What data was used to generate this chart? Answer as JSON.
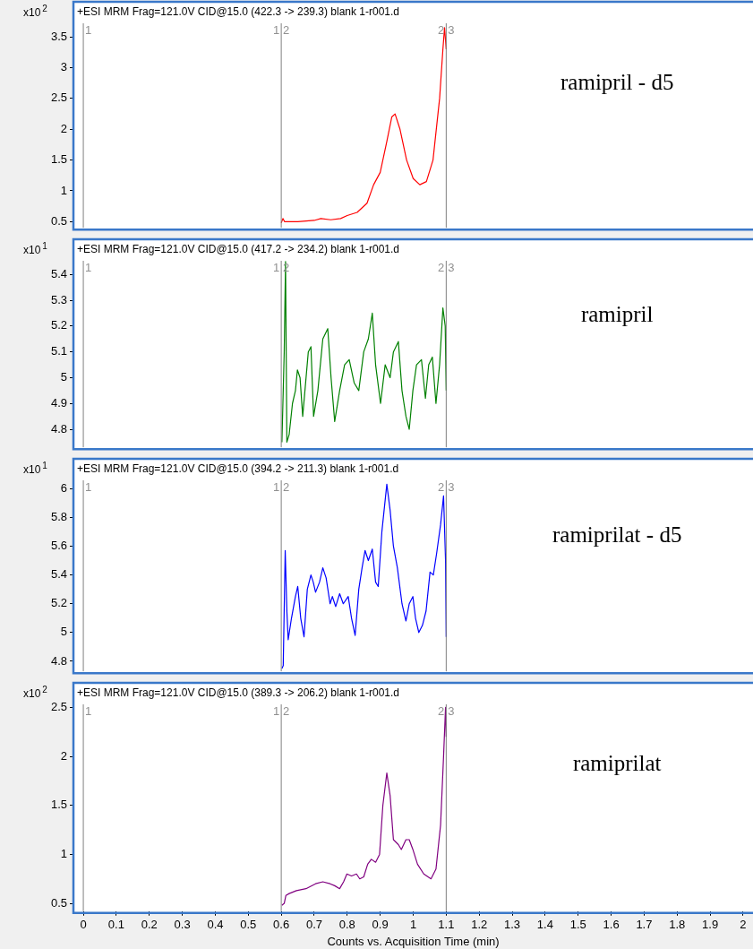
{
  "chart_data": [
    {
      "type": "line",
      "title": "+ESI MRM Frag=121.0V CID@15.0 (422.3 -> 239.3) blank 1-r001.d",
      "ylabel": "x10$^{2}$",
      "annotations": [
        "ramipril - d5",
        "1",
        "1",
        "2",
        "2",
        "3"
      ],
      "legend": false,
      "marker": "none",
      "tick_labels": "y",
      "xlim": [
        -0.03,
        2.03
      ],
      "ylim": [
        0.4,
        3.75
      ],
      "yticks": [
        {
          "value": 0.5,
          "label": "0.5"
        },
        1,
        {
          "value": 1.5,
          "label": "1.5"
        },
        2,
        {
          "value": 2.5,
          "label": "2.5"
        },
        3,
        {
          "value": 3.5,
          "label": "3.5"
        }
      ],
      "ref_lines": [
        {
          "axis": "x",
          "value": 0
        },
        {
          "axis": "x",
          "value": 0.6
        },
        {
          "axis": "x",
          "value": 1.1
        }
      ],
      "series": [
        {
          "color": "#ff0000",
          "x": [
            0.6,
            0.605,
            0.61,
            0.65,
            0.7,
            0.72,
            0.75,
            0.78,
            0.8,
            0.83,
            0.86,
            0.88,
            0.9,
            0.92,
            0.935,
            0.945,
            0.96,
            0.98,
            1.0,
            1.02,
            1.04,
            1.06,
            1.08,
            1.09,
            1.095,
            1.1
          ],
          "values": [
            0.48,
            0.55,
            0.5,
            0.5,
            0.52,
            0.55,
            0.53,
            0.55,
            0.6,
            0.65,
            0.8,
            1.1,
            1.3,
            1.8,
            2.2,
            2.25,
            2.0,
            1.5,
            1.2,
            1.1,
            1.15,
            1.5,
            2.5,
            3.3,
            3.65,
            3.3
          ]
        }
      ]
    },
    {
      "type": "line",
      "title": "+ESI MRM Frag=121.0V CID@15.0 (417.2 -> 234.2) blank 1-r001.d",
      "ylabel": "x10$^{1}$",
      "annotations": [
        "ramipril",
        "1",
        "1",
        "2",
        "2",
        "3"
      ],
      "legend": false,
      "marker": "none",
      "tick_labels": "y",
      "xlim": [
        -0.03,
        2.03
      ],
      "ylim": [
        4.73,
        5.46
      ],
      "yticks": [
        {
          "value": 4.8,
          "label": "4.8"
        },
        {
          "value": 4.9,
          "label": "4.9"
        },
        5,
        {
          "value": 5.1,
          "label": "5.1"
        },
        {
          "value": 5.2,
          "label": "5.2"
        },
        {
          "value": 5.3,
          "label": "5.3"
        },
        {
          "value": 5.4,
          "label": "5.4"
        }
      ],
      "ref_lines": [
        {
          "axis": "x",
          "value": 0
        },
        {
          "axis": "x",
          "value": 0.6
        },
        {
          "axis": "x",
          "value": 1.1
        }
      ],
      "series": [
        {
          "color": "#008000",
          "x": [
            0.602,
            0.609,
            0.613,
            0.617,
            0.624,
            0.634,
            0.643,
            0.649,
            0.657,
            0.665,
            0.682,
            0.69,
            0.698,
            0.711,
            0.726,
            0.741,
            0.751,
            0.762,
            0.777,
            0.792,
            0.806,
            0.821,
            0.835,
            0.85,
            0.864,
            0.876,
            0.886,
            0.901,
            0.915,
            0.93,
            0.94,
            0.955,
            0.966,
            0.978,
            0.988,
            0.999,
            1.01,
            1.025,
            1.037,
            1.047,
            1.058,
            1.069,
            1.08,
            1.09,
            1.097,
            1.1
          ],
          "values": [
            4.75,
            5.1,
            5.45,
            4.75,
            4.78,
            4.9,
            4.95,
            5.03,
            5.0,
            4.85,
            5.1,
            5.12,
            4.85,
            4.95,
            5.15,
            5.19,
            5.0,
            4.83,
            4.95,
            5.05,
            5.07,
            4.98,
            4.95,
            5.1,
            5.15,
            5.25,
            5.05,
            4.9,
            5.05,
            5.0,
            5.1,
            5.14,
            4.95,
            4.85,
            4.8,
            4.95,
            5.05,
            5.07,
            4.92,
            5.05,
            5.08,
            4.9,
            5.05,
            5.27,
            5.2,
            4.95
          ]
        }
      ]
    },
    {
      "type": "line",
      "title": "+ESI MRM Frag=121.0V CID@15.0 (394.2 -> 211.3) blank 1-r001.d",
      "ylabel": "x10$^{1}$",
      "annotations": [
        "ramiprilat - d5",
        "1",
        "1",
        "2",
        "2",
        "3"
      ],
      "legend": false,
      "marker": "none",
      "tick_labels": "y",
      "xlim": [
        -0.03,
        2.03
      ],
      "ylim": [
        4.73,
        6.07
      ],
      "yticks": [
        {
          "value": 4.8,
          "label": "4.8"
        },
        5,
        {
          "value": 5.2,
          "label": "5.2"
        },
        {
          "value": 5.4,
          "label": "5.4"
        },
        {
          "value": 5.6,
          "label": "5.6"
        },
        {
          "value": 5.8,
          "label": "5.8"
        },
        6
      ],
      "ref_lines": [
        {
          "axis": "x",
          "value": 0
        },
        {
          "axis": "x",
          "value": 0.6
        },
        {
          "axis": "x",
          "value": 1.1
        }
      ],
      "series": [
        {
          "color": "#0000ff",
          "x": [
            0.602,
            0.606,
            0.612,
            0.617,
            0.621,
            0.631,
            0.643,
            0.65,
            0.659,
            0.669,
            0.679,
            0.69,
            0.697,
            0.704,
            0.716,
            0.726,
            0.736,
            0.748,
            0.755,
            0.765,
            0.777,
            0.788,
            0.803,
            0.813,
            0.824,
            0.835,
            0.845,
            0.854,
            0.864,
            0.876,
            0.886,
            0.894,
            0.905,
            0.92,
            0.93,
            0.94,
            0.952,
            0.966,
            0.978,
            0.988,
            0.999,
            1.007,
            1.017,
            1.028,
            1.039,
            1.051,
            1.061,
            1.071,
            1.083,
            1.092,
            1.098,
            1.1
          ],
          "values": [
            4.75,
            4.77,
            5.57,
            5.15,
            4.95,
            5.1,
            5.25,
            5.32,
            5.1,
            4.97,
            5.3,
            5.4,
            5.35,
            5.28,
            5.35,
            5.45,
            5.38,
            5.2,
            5.25,
            5.18,
            5.27,
            5.2,
            5.25,
            5.1,
            4.98,
            5.3,
            5.45,
            5.57,
            5.5,
            5.58,
            5.35,
            5.32,
            5.7,
            6.03,
            5.85,
            5.6,
            5.45,
            5.2,
            5.08,
            5.2,
            5.25,
            5.1,
            5.0,
            5.05,
            5.15,
            5.42,
            5.4,
            5.55,
            5.75,
            5.95,
            5.5,
            4.97
          ]
        }
      ]
    },
    {
      "type": "line",
      "title": "+ESI MRM Frag=121.0V CID@15.0 (389.3 -> 206.2) blank 1-r001.d",
      "ylabel": "x10$^{2}$",
      "xlabel": "Counts vs. Acquisition Time (min)",
      "annotations": [
        "ramiprilat",
        "1",
        "1",
        "2",
        "2",
        "3"
      ],
      "legend": false,
      "marker": "none",
      "xlim": [
        -0.03,
        2.03
      ],
      "ylim": [
        0.42,
        2.55
      ],
      "xticks": [
        0,
        {
          "value": 0.1,
          "label": "0.1"
        },
        {
          "value": 0.2,
          "label": "0.2"
        },
        {
          "value": 0.3,
          "label": "0.3"
        },
        {
          "value": 0.4,
          "label": "0.4"
        },
        {
          "value": 0.5,
          "label": "0.5"
        },
        {
          "value": 0.6,
          "label": "0.6"
        },
        {
          "value": 0.7,
          "label": "0.7"
        },
        {
          "value": 0.8,
          "label": "0.8"
        },
        {
          "value": 0.9,
          "label": "0.9"
        },
        1,
        {
          "value": 1.1,
          "label": "1.1"
        },
        {
          "value": 1.2,
          "label": "1.2"
        },
        {
          "value": 1.3,
          "label": "1.3"
        },
        {
          "value": 1.4,
          "label": "1.4"
        },
        {
          "value": 1.5,
          "label": "1.5"
        },
        {
          "value": 1.6,
          "label": "1.6"
        },
        {
          "value": 1.7,
          "label": "1.7"
        },
        {
          "value": 1.8,
          "label": "1.8"
        },
        {
          "value": 1.9,
          "label": "1.9"
        },
        2
      ],
      "yticks": [
        {
          "value": 0.5,
          "label": "0.5"
        },
        1,
        {
          "value": 1.5,
          "label": "1.5"
        },
        2,
        {
          "value": 2.5,
          "label": "2.5"
        }
      ],
      "ref_lines": [
        {
          "axis": "x",
          "value": 0
        },
        {
          "axis": "x",
          "value": 0.6
        },
        {
          "axis": "x",
          "value": 1.1
        }
      ],
      "series": [
        {
          "color": "#800080",
          "x": [
            0.602,
            0.609,
            0.614,
            0.624,
            0.646,
            0.675,
            0.704,
            0.726,
            0.748,
            0.762,
            0.777,
            0.789,
            0.799,
            0.813,
            0.828,
            0.838,
            0.85,
            0.862,
            0.873,
            0.886,
            0.898,
            0.908,
            0.92,
            0.93,
            0.94,
            0.955,
            0.964,
            0.978,
            0.988,
            0.999,
            1.013,
            1.032,
            1.054,
            1.069,
            1.083,
            1.092,
            1.098,
            1.1
          ],
          "values": [
            0.48,
            0.5,
            0.58,
            0.6,
            0.63,
            0.65,
            0.7,
            0.72,
            0.7,
            0.68,
            0.65,
            0.72,
            0.8,
            0.78,
            0.8,
            0.75,
            0.77,
            0.9,
            0.95,
            0.92,
            1.0,
            1.5,
            1.83,
            1.6,
            1.15,
            1.1,
            1.05,
            1.15,
            1.15,
            1.05,
            0.9,
            0.8,
            0.75,
            0.85,
            1.3,
            2.0,
            2.5,
            2.2
          ]
        }
      ]
    }
  ]
}
